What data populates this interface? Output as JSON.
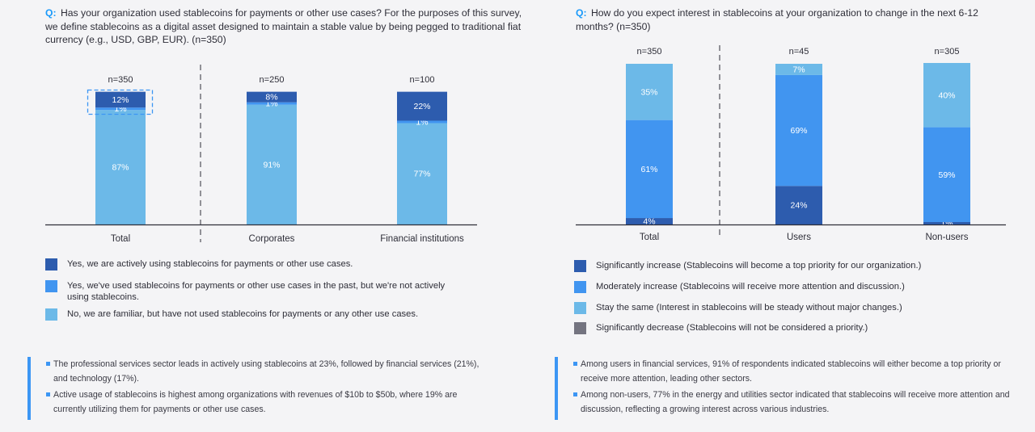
{
  "left": {
    "question_prefix": "Q:",
    "question_text": "Has your organization used stablecoins for payments or other use cases? For the purposes of this survey, we define stablecoins as a digital asset designed to maintain a stable value by being pegged to traditional fiat currency (e.g., USD, GBP, EUR). (n=350)",
    "legend": [
      {
        "label": "Yes, we are actively using stablecoins for payments or other use cases.",
        "color": "#2d5cae"
      },
      {
        "label": "Yes, we've used stablecoins for payments or other use cases in the past, but we're not actively using stablecoins.",
        "color": "#4195f0"
      },
      {
        "label": "No, we are familiar, but have not used stablecoins for payments or any other use cases.",
        "color": "#6cb9e8"
      }
    ],
    "notes": [
      "The professional services sector leads in actively using stablecoins at 23%, followed by financial services (21%), and technology (17%).",
      "Active usage of stablecoins is highest among organizations with revenues of $10b to $50b, where 19% are currently utilizing them for payments or other use cases."
    ]
  },
  "right": {
    "question_prefix": "Q:",
    "question_text": "How do you expect interest in stablecoins at your organization to change in the next 6-12 months? (n=350)",
    "legend": [
      {
        "label": "Significantly increase (Stablecoins will become a top priority for our organization.)",
        "color": "#2d5cae"
      },
      {
        "label": "Moderately increase (Stablecoins will receive more attention and discussion.)",
        "color": "#4195f0"
      },
      {
        "label": "Stay the same (Interest in stablecoins will be steady without major changes.)",
        "color": "#6cb9e8"
      },
      {
        "label": "Significantly decrease (Stablecoins will not be considered a priority.)",
        "color": "#747480"
      }
    ],
    "notes": [
      "Among users in financial services, 91% of respondents indicated stablecoins will either become a top priority or receive more attention, leading other sectors.",
      "Among non-users, 77% in the energy and utilities sector indicated that stablecoins will receive more attention and discussion, reflecting a growing interest across various industries."
    ]
  },
  "chart_data": [
    {
      "type": "bar",
      "stacked": true,
      "categories": [
        "Total",
        "Corporates",
        "Financial institutions"
      ],
      "n_labels": [
        "n=350",
        "n=250",
        "n=100"
      ],
      "series": [
        {
          "key": "no",
          "values": [
            87,
            91,
            77
          ],
          "labels": [
            "87%",
            "91%",
            "77%"
          ],
          "color": "#6cb9e8"
        },
        {
          "key": "past",
          "values": [
            1,
            1,
            1
          ],
          "labels": [
            "1%",
            "1%",
            "1%"
          ],
          "color": "#4195f0"
        },
        {
          "key": "active",
          "values": [
            12,
            8,
            22
          ],
          "labels": [
            "12%",
            "8%",
            "22%"
          ],
          "color": "#2d5cae"
        }
      ],
      "ylim": [
        0,
        100
      ],
      "highlight_active_total": true
    },
    {
      "type": "bar",
      "stacked": true,
      "categories": [
        "Total",
        "Users",
        "Non-users"
      ],
      "n_labels": [
        "n=350",
        "n=45",
        "n=305"
      ],
      "series": [
        {
          "key": "sig_decrease",
          "values": [
            0,
            0,
            0
          ],
          "labels": [
            "",
            "",
            ""
          ],
          "color": "#747480"
        },
        {
          "key": "sig_increase",
          "values": [
            4,
            24,
            1
          ],
          "labels": [
            "4%",
            "24%",
            "1%"
          ],
          "color": "#2d5cae"
        },
        {
          "key": "mod_increase",
          "values": [
            61,
            69,
            59
          ],
          "labels": [
            "61%",
            "69%",
            "59%"
          ],
          "color": "#4195f0"
        },
        {
          "key": "same",
          "values": [
            35,
            7,
            40
          ],
          "labels": [
            "35%",
            "7%",
            "40%"
          ],
          "color": "#6cb9e8"
        }
      ],
      "ylim": [
        0,
        100
      ]
    }
  ]
}
